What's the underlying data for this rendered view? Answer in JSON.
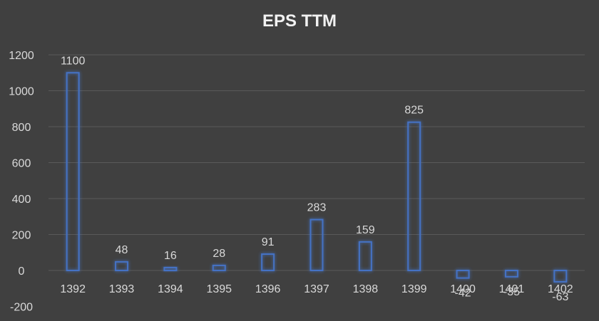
{
  "chart_data": {
    "type": "bar",
    "title": "EPS TTM",
    "xlabel": "",
    "ylabel": "",
    "categories": [
      "1392",
      "1393",
      "1394",
      "1395",
      "1396",
      "1397",
      "1398",
      "1399",
      "1400",
      "1401",
      "1402"
    ],
    "values": [
      1100,
      48,
      16,
      28,
      91,
      283,
      159,
      825,
      -42,
      -35,
      -63
    ],
    "ylim": [
      -200,
      1200
    ],
    "yticks": [
      -200,
      0,
      200,
      400,
      600,
      800,
      1000,
      1200
    ],
    "grid": true,
    "legend": "none",
    "colors": {
      "background": "#404040",
      "bar_stroke": "#4472c4",
      "bar_glow": "#2f5597",
      "text": "#d9d9d9",
      "grid": "#5a5a5a",
      "title": "#f2f2f2"
    }
  }
}
